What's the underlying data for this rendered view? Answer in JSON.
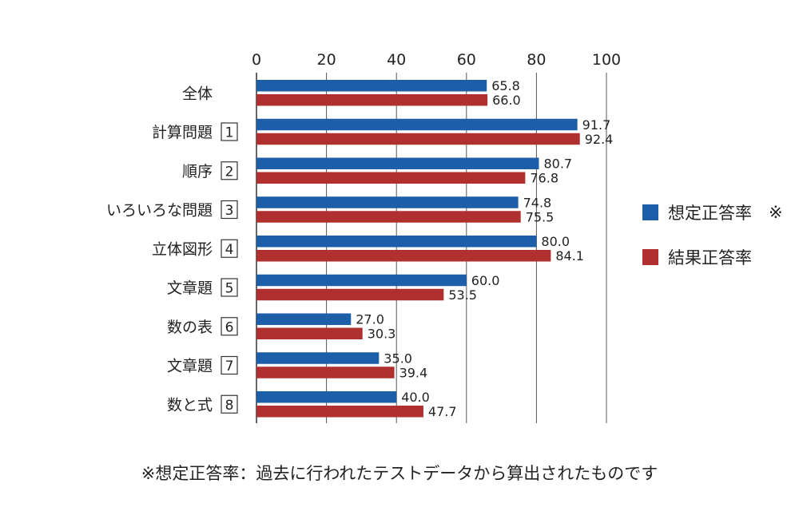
{
  "chart_data": {
    "type": "bar",
    "orientation": "horizontal",
    "xlim": [
      0,
      100
    ],
    "xticks": [
      0,
      20,
      40,
      60,
      80,
      100
    ],
    "grid": true,
    "legend_position": "right",
    "categories": [
      {
        "label": "全体",
        "number": ""
      },
      {
        "label": "計算問題",
        "number": "1"
      },
      {
        "label": "順序",
        "number": "2"
      },
      {
        "label": "いろいろな問題",
        "number": "3"
      },
      {
        "label": "立体図形",
        "number": "4"
      },
      {
        "label": "文章題",
        "number": "5"
      },
      {
        "label": "数の表",
        "number": "6"
      },
      {
        "label": "文章題",
        "number": "7"
      },
      {
        "label": "数と式",
        "number": "8"
      }
    ],
    "series": [
      {
        "name": "想定正答率",
        "marker": "※",
        "color": "#1c5ea8",
        "values": [
          65.8,
          91.7,
          80.7,
          74.8,
          80.0,
          60.0,
          27.0,
          35.0,
          40.0
        ],
        "labels": [
          "65.8",
          "91.7",
          "80.7",
          "74.8",
          "80.0",
          "60.0",
          "27.0",
          "35.0",
          "40.0"
        ]
      },
      {
        "name": "結果正答率",
        "marker": "",
        "color": "#b03030",
        "values": [
          66.0,
          92.4,
          76.8,
          75.5,
          84.1,
          53.5,
          30.3,
          39.4,
          47.7
        ],
        "labels": [
          "66.0",
          "92.4",
          "76.8",
          "75.5",
          "84.1",
          "53.5",
          "30.3",
          "39.4",
          "47.7"
        ]
      }
    ]
  },
  "footnote": "※想定正答率：過去に行われたテストデータから算出されたものです"
}
